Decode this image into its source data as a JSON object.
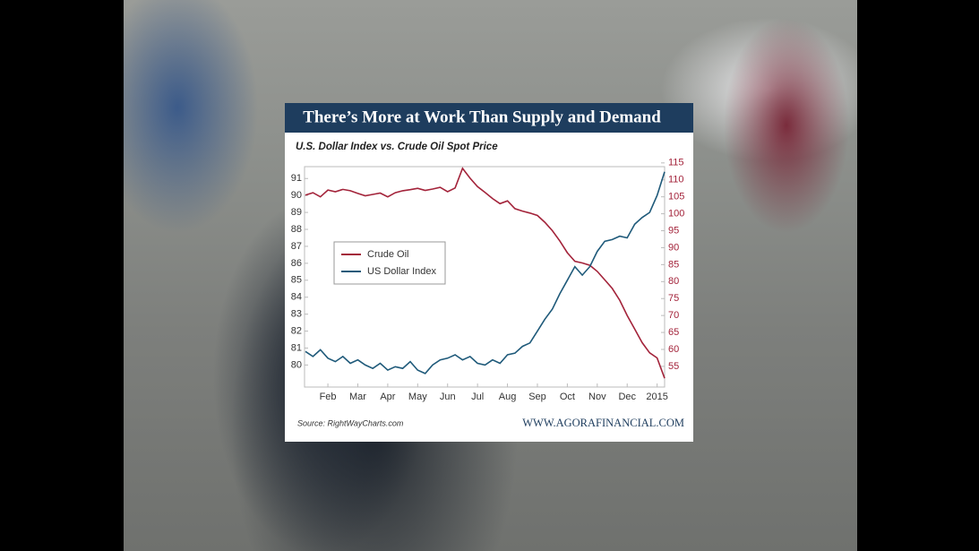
{
  "chart_data": {
    "type": "line",
    "title": "There’s More at Work Than Supply and Demand",
    "subtitle": "U.S. Dollar Index vs. Crude Oil Spot Price",
    "source": "Source: RightWayCharts.com",
    "website": "WWW.AGORAFINANCIAL.COM",
    "x": [
      0.25,
      0.5,
      0.75,
      1.0,
      1.25,
      1.5,
      1.75,
      2.0,
      2.25,
      2.5,
      2.75,
      3.0,
      3.25,
      3.5,
      3.75,
      4.0,
      4.25,
      4.5,
      4.75,
      5.0,
      5.25,
      5.5,
      5.75,
      6.0,
      6.25,
      6.5,
      6.75,
      7.0,
      7.25,
      7.5,
      7.75,
      8.0,
      8.25,
      8.5,
      8.75,
      9.0,
      9.25,
      9.5,
      9.75,
      10.0,
      10.25,
      10.5,
      10.75,
      11.0,
      11.25,
      11.5,
      11.75,
      12.0,
      12.25
    ],
    "xlim": [
      0.22,
      12.25
    ],
    "xticks": [
      {
        "value": 1,
        "label": "Feb"
      },
      {
        "value": 2,
        "label": "Mar"
      },
      {
        "value": 3,
        "label": "Apr"
      },
      {
        "value": 4,
        "label": "May"
      },
      {
        "value": 5,
        "label": "Jun"
      },
      {
        "value": 6,
        "label": "Jul"
      },
      {
        "value": 7,
        "label": "Aug"
      },
      {
        "value": 8,
        "label": "Sep"
      },
      {
        "value": 9,
        "label": "Oct"
      },
      {
        "value": 10,
        "label": "Nov"
      },
      {
        "value": 11,
        "label": "Dec"
      },
      {
        "value": 12,
        "label": "2015"
      }
    ],
    "ylim": [
      78.7,
      91.7
    ],
    "yticks": [
      80,
      81,
      82,
      83,
      84,
      85,
      86,
      87,
      88,
      89,
      90,
      91
    ],
    "y2lim": [
      48.9,
      113.9
    ],
    "y2ticks": [
      55,
      60,
      65,
      70,
      75,
      80,
      85,
      90,
      95,
      100,
      105,
      110,
      115
    ],
    "legend": "upper-left",
    "series": [
      {
        "name": "Crude Oil",
        "color": "#a3233a",
        "axis": "y2",
        "values": [
          105.5,
          106.2,
          105,
          107,
          106.5,
          107.2,
          106.8,
          106.0,
          105.3,
          105.7,
          106.1,
          105.0,
          106.2,
          106.8,
          107.1,
          107.5,
          106.9,
          107.3,
          107.8,
          106.5,
          107.6,
          113.4,
          110.5,
          108.0,
          106.3,
          104.5,
          103.0,
          103.8,
          101.5,
          100.8,
          100.2,
          99.5,
          97.5,
          95.0,
          92.0,
          88.5,
          86.0,
          85.5,
          84.8,
          83.0,
          80.5,
          78.0,
          74.5,
          70.0,
          66.0,
          62.0,
          59.0,
          57.5,
          51.5
        ]
      },
      {
        "name": "US Dollar Index",
        "color": "#1f5a7a",
        "axis": "y",
        "values": [
          80.8,
          80.5,
          80.9,
          80.4,
          80.2,
          80.5,
          80.1,
          80.3,
          80.0,
          79.8,
          80.1,
          79.7,
          79.9,
          79.8,
          80.2,
          79.7,
          79.5,
          80.0,
          80.3,
          80.4,
          80.6,
          80.3,
          80.5,
          80.1,
          80.0,
          80.3,
          80.1,
          80.6,
          80.7,
          81.1,
          81.3,
          82.0,
          82.7,
          83.3,
          84.2,
          85.0,
          85.8,
          85.3,
          85.8,
          86.7,
          87.3,
          87.4,
          87.6,
          87.5,
          88.3,
          88.7,
          89.0,
          90.0,
          91.4
        ]
      }
    ]
  }
}
